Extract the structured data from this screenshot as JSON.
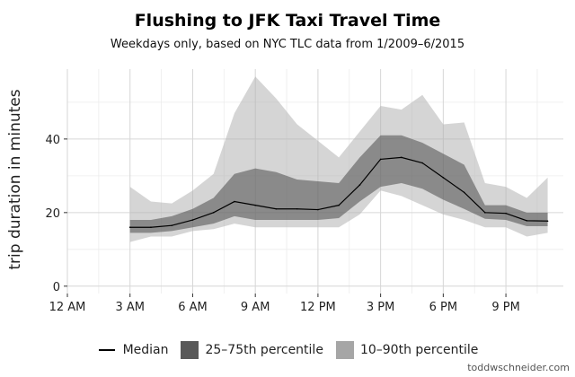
{
  "chart_data": {
    "type": "area",
    "title": "Flushing to JFK Taxi Travel Time",
    "subtitle": "Weekdays only, based on NYC TLC data from 1/2009–6/2015",
    "xlabel": "",
    "ylabel": "trip duration in minutes",
    "x_unit": "hour of day",
    "xlim": [
      0,
      23.75
    ],
    "ylim": [
      -2,
      59
    ],
    "x_ticks": [
      {
        "value": 0,
        "label": "12 AM"
      },
      {
        "value": 3,
        "label": "3 AM"
      },
      {
        "value": 6,
        "label": "6 AM"
      },
      {
        "value": 9,
        "label": "9 AM"
      },
      {
        "value": 12,
        "label": "12 PM"
      },
      {
        "value": 15,
        "label": "3 PM"
      },
      {
        "value": 18,
        "label": "6 PM"
      },
      {
        "value": 21,
        "label": "9 PM"
      }
    ],
    "y_ticks": [
      0,
      20,
      40
    ],
    "grid": true,
    "legend_position": "bottom",
    "x": [
      3,
      4,
      5,
      6,
      7,
      8,
      9,
      10,
      11,
      12,
      13,
      14,
      15,
      16,
      17,
      18,
      19,
      20,
      21,
      22,
      23
    ],
    "series": [
      {
        "name": "Median",
        "kind": "line",
        "color": "#000000",
        "values": [
          16,
          16,
          16.5,
          18,
          20,
          23,
          22,
          21,
          21,
          20.8,
          22,
          27.5,
          34.5,
          35,
          33.5,
          29.5,
          25.5,
          20,
          19.8,
          17.8,
          17.7
        ]
      },
      {
        "name": "25–75th percentile",
        "kind": "band",
        "color": "#4d4d4d",
        "low": [
          14.5,
          14.5,
          15,
          16,
          17,
          19,
          18,
          18,
          18,
          18,
          18.5,
          23,
          27,
          28,
          26.5,
          23.5,
          21,
          18.3,
          18,
          16.3,
          16.3
        ],
        "high": [
          18,
          18,
          19,
          21,
          24,
          30.5,
          32,
          31,
          29,
          28.5,
          28,
          35,
          41,
          41,
          39,
          36,
          33,
          22,
          22,
          20,
          20
        ]
      },
      {
        "name": "10–90th percentile",
        "kind": "band",
        "color": "#b3b3b3",
        "low": [
          12,
          13.5,
          13.5,
          15,
          15.5,
          17,
          16,
          16,
          16,
          16,
          16,
          19.5,
          26,
          24.5,
          22,
          19.5,
          18,
          16,
          16,
          13.5,
          14.5
        ],
        "high": [
          27,
          23,
          22.5,
          26,
          30.5,
          47,
          57,
          51,
          44,
          39.5,
          35,
          42,
          49,
          48,
          52,
          44,
          44.5,
          28,
          27,
          24,
          29.5
        ]
      }
    ]
  },
  "legend": {
    "median": "Median",
    "iqr": "25–75th percentile",
    "p10_90": "10–90th percentile"
  },
  "credit": "toddwschneider.com"
}
